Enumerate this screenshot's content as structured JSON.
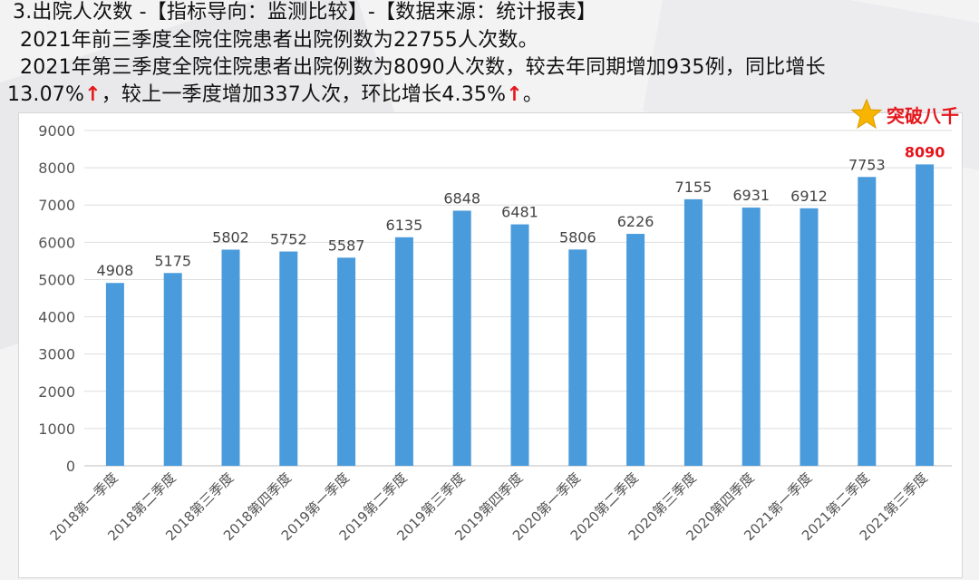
{
  "header": {
    "title": "3.出院人次数 -【指标导向：监测比较】-【数据来源：统计报表】",
    "line2": "2021年前三季度全院住院患者出院例数为22755人次数。",
    "line3": "2021年第三季度全院住院患者出院例数为8090人次数，较去年同期增加935例，同比增长",
    "line4_a": "13.07%",
    "line4_arrow1": "↑",
    "line4_b": "，较上一季度增加337人次，环比增长4.35%",
    "line4_arrow2": "↑",
    "line4_c": "。"
  },
  "badge": {
    "text": "突破八千",
    "icon": "star-icon"
  },
  "colors": {
    "bar": "#4a9bdc",
    "highlight_label": "#e5161b",
    "arrow": "#e5161b",
    "star": "#f7b500"
  },
  "chart_data": {
    "type": "bar",
    "categories": [
      "2018第一季度",
      "2018第二季度",
      "2018第三季度",
      "2018第四季度",
      "2019第一季度",
      "2019第二季度",
      "2019第三季度",
      "2019第四季度",
      "2020第一季度",
      "2020第二季度",
      "2020第三季度",
      "2020第四季度",
      "2021第一季度",
      "2021第二季度",
      "2021第三季度"
    ],
    "values": [
      4908,
      5175,
      5802,
      5752,
      5587,
      6135,
      6848,
      6481,
      5806,
      6226,
      7155,
      6931,
      6912,
      7753,
      8090
    ],
    "ylim": [
      0,
      9000
    ],
    "yticks": [
      0,
      1000,
      2000,
      3000,
      4000,
      5000,
      6000,
      7000,
      8000,
      9000
    ],
    "grid": true,
    "highlight_index": 14
  }
}
